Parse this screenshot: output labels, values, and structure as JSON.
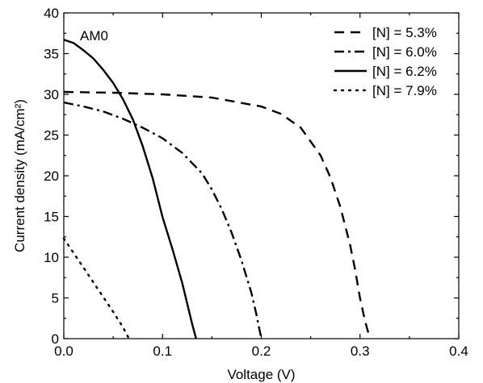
{
  "chart_data": {
    "type": "line",
    "title": "",
    "xlabel": "Voltage (V)",
    "ylabel": "Current density (mA/cm²)",
    "xlim": [
      0.0,
      0.4
    ],
    "ylim": [
      0,
      40
    ],
    "xticks": [
      0.0,
      0.1,
      0.2,
      0.3,
      0.4
    ],
    "xtick_labels": [
      "0.0",
      "0.1",
      "0.2",
      "0.3",
      "0.4"
    ],
    "yticks": [
      0,
      5,
      10,
      15,
      20,
      25,
      30,
      35,
      40
    ],
    "ytick_labels": [
      "0",
      "5",
      "10",
      "15",
      "20",
      "25",
      "30",
      "35",
      "40"
    ],
    "annotation": "AM0",
    "legend_position": "top-right",
    "grid": false,
    "series": [
      {
        "name": "[N] = 5.3%",
        "style": "dashed",
        "x": [
          0.0,
          0.05,
          0.1,
          0.15,
          0.2,
          0.22,
          0.24,
          0.26,
          0.27,
          0.28,
          0.29,
          0.295,
          0.3,
          0.305,
          0.31
        ],
        "y": [
          30.3,
          30.2,
          30.0,
          29.6,
          28.5,
          27.6,
          25.9,
          22.5,
          19.8,
          16.2,
          11.5,
          8.5,
          5.0,
          2.2,
          0.0
        ]
      },
      {
        "name": "[N] = 6.0%",
        "style": "dashdot",
        "x": [
          0.0,
          0.02,
          0.04,
          0.06,
          0.08,
          0.1,
          0.12,
          0.14,
          0.15,
          0.16,
          0.17,
          0.18,
          0.19,
          0.195,
          0.2
        ],
        "y": [
          29.0,
          28.5,
          27.9,
          27.0,
          25.9,
          24.6,
          22.8,
          20.3,
          18.3,
          15.9,
          13.0,
          9.6,
          5.6,
          3.0,
          0.0
        ]
      },
      {
        "name": "[N] = 6.2%",
        "style": "solid",
        "x": [
          0.0,
          0.01,
          0.02,
          0.03,
          0.04,
          0.05,
          0.06,
          0.07,
          0.08,
          0.09,
          0.1,
          0.11,
          0.12,
          0.13,
          0.134
        ],
        "y": [
          36.7,
          36.3,
          35.4,
          34.4,
          33.0,
          31.4,
          29.4,
          26.9,
          23.6,
          19.7,
          14.9,
          11.0,
          6.8,
          1.8,
          0.0
        ]
      },
      {
        "name": "[N] = 7.9%",
        "style": "dotted",
        "x": [
          0.0,
          0.01,
          0.02,
          0.03,
          0.04,
          0.05,
          0.06,
          0.066
        ],
        "y": [
          12.3,
          10.5,
          8.7,
          6.9,
          5.1,
          3.3,
          1.4,
          0.0
        ]
      }
    ]
  }
}
